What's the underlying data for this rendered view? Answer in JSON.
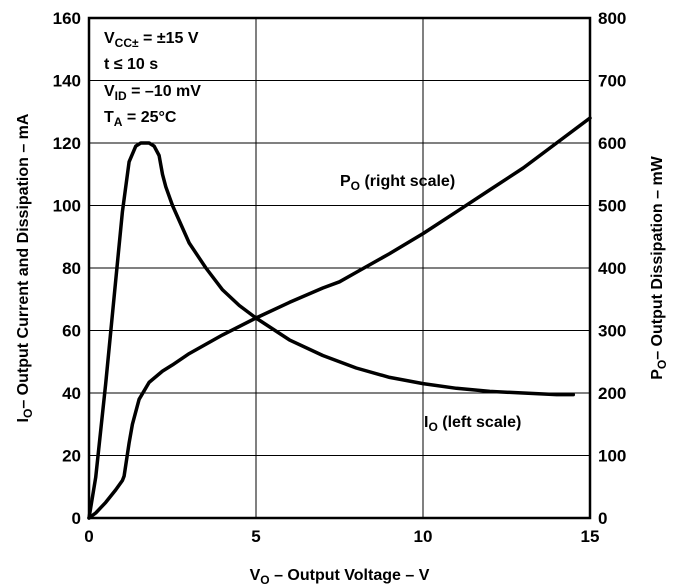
{
  "chart_data": {
    "type": "line",
    "xlabel": {
      "main": "V",
      "sub": "O",
      "rest": " – Output Voltage – V"
    },
    "ylabel_left": {
      "main": "I",
      "sub": "O",
      "rest": "– Output Current and Dissipation – mA"
    },
    "ylabel_right": {
      "main": "P",
      "sub": "O",
      "rest": "– Output Dissipation – mW"
    },
    "xlim": [
      0,
      15
    ],
    "ylim_left": [
      0,
      160
    ],
    "ylim_right": [
      0,
      800
    ],
    "grid": true,
    "x_ticks": [
      0,
      5,
      10,
      15
    ],
    "y_left_ticks": [
      0,
      20,
      40,
      60,
      80,
      100,
      120,
      140,
      160
    ],
    "y_right_ticks": [
      0,
      100,
      200,
      300,
      400,
      500,
      600,
      700,
      800
    ],
    "conditions": [
      {
        "main": "V",
        "sub": "CC±",
        "rest": " = ±15 V"
      },
      {
        "main": "t ≤ 10 s",
        "sub": "",
        "rest": ""
      },
      {
        "main": "V",
        "sub": "ID",
        "rest": " = –10 mV"
      },
      {
        "main": "T",
        "sub": "A",
        "rest": " = 25°C"
      }
    ],
    "series": [
      {
        "label": {
          "main": "I",
          "sub": "O",
          "rest": " (left scale)"
        },
        "axis": "left",
        "x": [
          0,
          0.2,
          0.5,
          0.8,
          1.0,
          1.2,
          1.4,
          1.55,
          1.7,
          1.8,
          1.95,
          2.1,
          2.2,
          2.3,
          2.5,
          3.0,
          3.5,
          4.0,
          4.5,
          5.0,
          6.0,
          7.0,
          8.0,
          9.0,
          10.0,
          11.0,
          12.0,
          13.0,
          14.0,
          14.5
        ],
        "y": [
          0,
          13,
          43,
          76,
          98,
          114,
          119,
          120,
          120,
          120,
          119,
          116,
          110,
          106,
          100,
          88,
          80,
          73,
          68,
          64,
          57,
          52,
          48,
          45,
          43,
          41.5,
          40.5,
          40,
          39.5,
          39.5
        ]
      },
      {
        "label": {
          "main": "P",
          "sub": "O",
          "rest": " (right scale)"
        },
        "axis": "right",
        "x": [
          0,
          0.2,
          0.5,
          0.8,
          1.0,
          1.05,
          1.2,
          1.3,
          1.5,
          1.8,
          2.2,
          2.5,
          3.0,
          4.0,
          5.0,
          6.0,
          7.0,
          7.5,
          8.0,
          9.0,
          10.0,
          11.0,
          12.0,
          13.0,
          14.0,
          14.5,
          15.0
        ],
        "y": [
          0,
          8,
          25,
          45,
          60,
          67,
          120,
          150,
          190,
          217,
          235,
          245,
          263,
          293,
          320,
          345,
          368,
          378,
          393,
          423,
          455,
          490,
          525,
          560,
          600,
          620,
          640
        ]
      }
    ]
  }
}
